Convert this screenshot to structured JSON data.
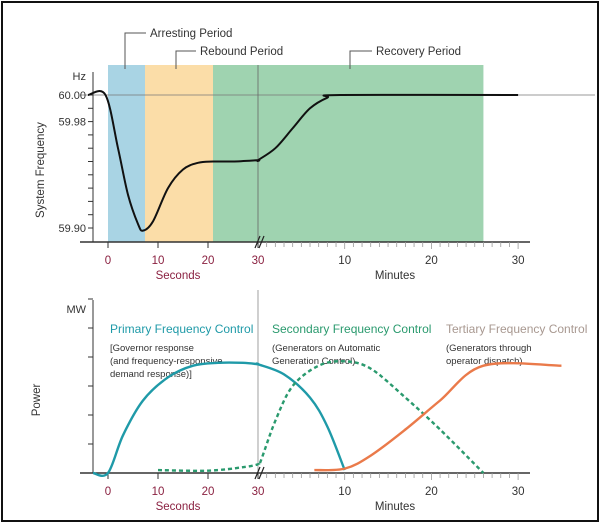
{
  "chart_data": [
    {
      "type": "line",
      "ylabel": "System Frequency",
      "yunit": "Hz",
      "y_tick_labels": [
        "60.00",
        "59.98",
        "59.90"
      ],
      "y_ticks": [
        60.0,
        59.98,
        59.9
      ],
      "x_seconds_ticks": [
        "0",
        "10",
        "20",
        "30"
      ],
      "x_minutes_ticks": [
        "10",
        "20",
        "30"
      ],
      "xlabel_seconds": "Seconds",
      "xlabel_minutes": "Minutes",
      "periods": [
        {
          "name": "Arresting Period",
          "start_s": 0,
          "end_s": 7.4,
          "color": "#a9d4e4"
        },
        {
          "name": "Rebound Period",
          "start_s": 7.4,
          "end_s": 21,
          "color": "#fbdda8"
        },
        {
          "name": "Recovery Period",
          "start_s": 21,
          "end_min": 26,
          "color": "#9fd3b0"
        }
      ],
      "series": [
        {
          "color": "#111111",
          "seconds": [
            [
              -4,
              60
            ],
            [
              -0.5,
              60
            ],
            [
              2,
              59.96
            ],
            [
              4,
              59.925
            ],
            [
              6,
              59.903
            ],
            [
              7,
              59.898
            ],
            [
              9,
              59.905
            ],
            [
              12,
              59.93
            ],
            [
              15,
              59.944
            ],
            [
              18,
              59.949
            ],
            [
              21,
              59.95
            ],
            [
              25,
              59.95
            ],
            [
              30,
              59.951
            ]
          ],
          "minutes": [
            [
              0,
              59.951
            ],
            [
              2,
              59.96
            ],
            [
              4,
              59.975
            ],
            [
              6,
              59.99
            ],
            [
              8,
              59.998
            ],
            [
              9.5,
              60
            ],
            [
              30,
              60
            ]
          ]
        }
      ]
    },
    {
      "type": "line",
      "ylabel": "Power",
      "yunit": "MW",
      "x_seconds_ticks": [
        "0",
        "10",
        "20",
        "30"
      ],
      "x_minutes_ticks": [
        "10",
        "20",
        "30"
      ],
      "xlabel_seconds": "Seconds",
      "xlabel_minutes": "Minutes",
      "annotations": [
        {
          "title": "Primary Frequency Control",
          "desc": [
            "[Governor response",
            "(and frequency-responsive",
            "demand response)]"
          ],
          "color": "#1f9aa8"
        },
        {
          "title": "Secondary Frequency Control",
          "desc": [
            "(Generators on Automatic",
            "Generation Control)"
          ],
          "color": "#2a9a6e"
        },
        {
          "title": "Tertiary Frequency Control",
          "desc": [
            "(Generators through",
            "operator dispatch)"
          ],
          "color": "#a89890"
        }
      ],
      "series": [
        {
          "color": "#1f9aa8",
          "dash": false,
          "seconds": [
            [
              -3,
              0
            ],
            [
              0,
              0
            ],
            [
              3,
              1.3
            ],
            [
              7,
              2.5
            ],
            [
              12,
              3.3
            ],
            [
              17,
              3.7
            ],
            [
              22,
              3.8
            ],
            [
              27,
              3.8
            ],
            [
              30,
              3.75
            ]
          ],
          "minutes": [
            [
              0,
              3.75
            ],
            [
              3,
              3.4
            ],
            [
              6,
              2.6
            ],
            [
              8,
              1.6
            ],
            [
              10,
              0.1
            ]
          ]
        },
        {
          "color": "#2a9a6e",
          "dash": true,
          "seconds": [
            [
              10,
              0.1
            ],
            [
              20,
              0.08
            ],
            [
              27,
              0.2
            ],
            [
              30,
              0.3
            ]
          ],
          "minutes": [
            [
              0.3,
              0.4
            ],
            [
              2,
              1.8
            ],
            [
              4,
              3.0
            ],
            [
              7,
              3.7
            ],
            [
              10,
              3.85
            ],
            [
              13,
              3.6
            ],
            [
              17,
              2.6
            ],
            [
              21,
              1.5
            ],
            [
              26,
              0
            ]
          ]
        },
        {
          "color": "#ea7a4a",
          "dash": false,
          "seconds": [],
          "minutes": [
            [
              6.5,
              0.1
            ],
            [
              10,
              0.15
            ],
            [
              13,
              0.6
            ],
            [
              17,
              1.5
            ],
            [
              21,
              2.5
            ],
            [
              26,
              3.7
            ],
            [
              35,
              3.7
            ]
          ]
        }
      ]
    }
  ],
  "colors": {
    "seconds_label": "#8a2040",
    "axis": "#333333"
  }
}
